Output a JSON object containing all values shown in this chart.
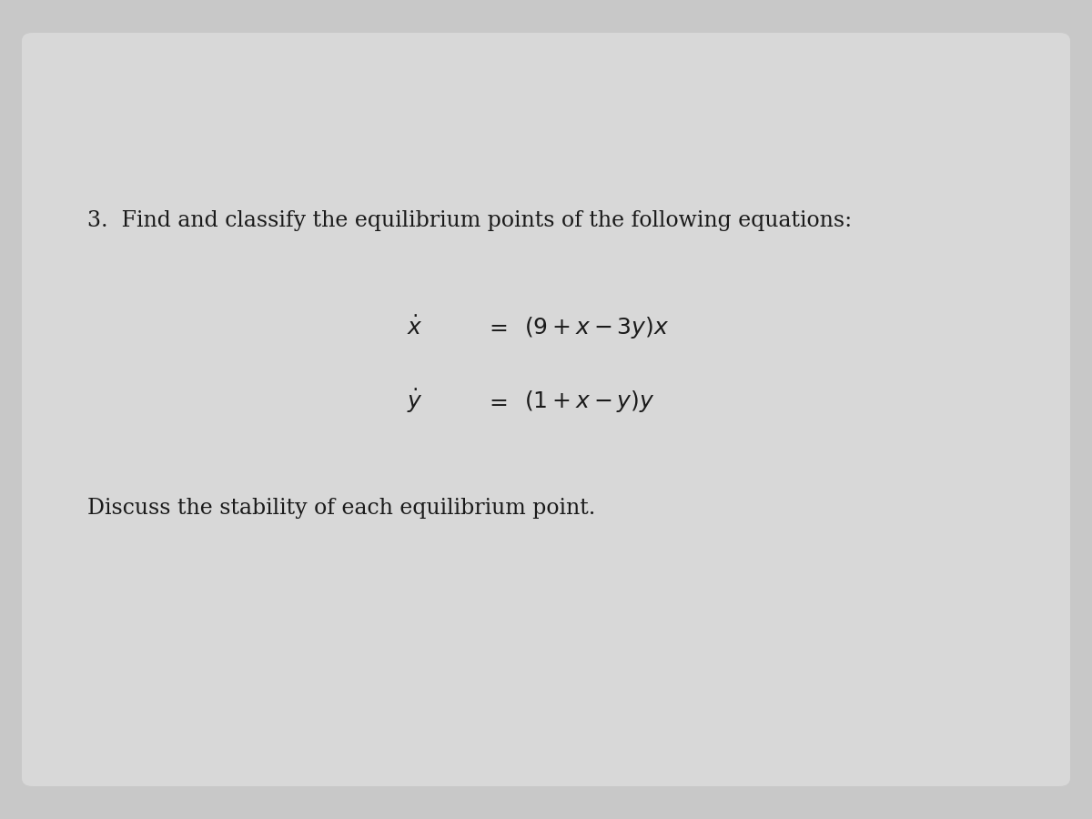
{
  "background_color": "#c8c8c8",
  "paper_color": "#d8d8d8",
  "text_color": "#1a1a1a",
  "problem_number": "3.",
  "intro_text": "Find and classify the equilibrium points of the following equations:",
  "eq1_lhs": "$\\dot{x}$",
  "eq1_rhs": "$(9 + x - 3y)x$",
  "eq2_lhs": "$\\dot{y}$",
  "eq2_rhs": "$(1 + x - y)y$",
  "equals": "$=$",
  "footer_text": "Discuss the stability of each equilibrium point.",
  "figsize": [
    12,
    9
  ],
  "dpi": 100
}
